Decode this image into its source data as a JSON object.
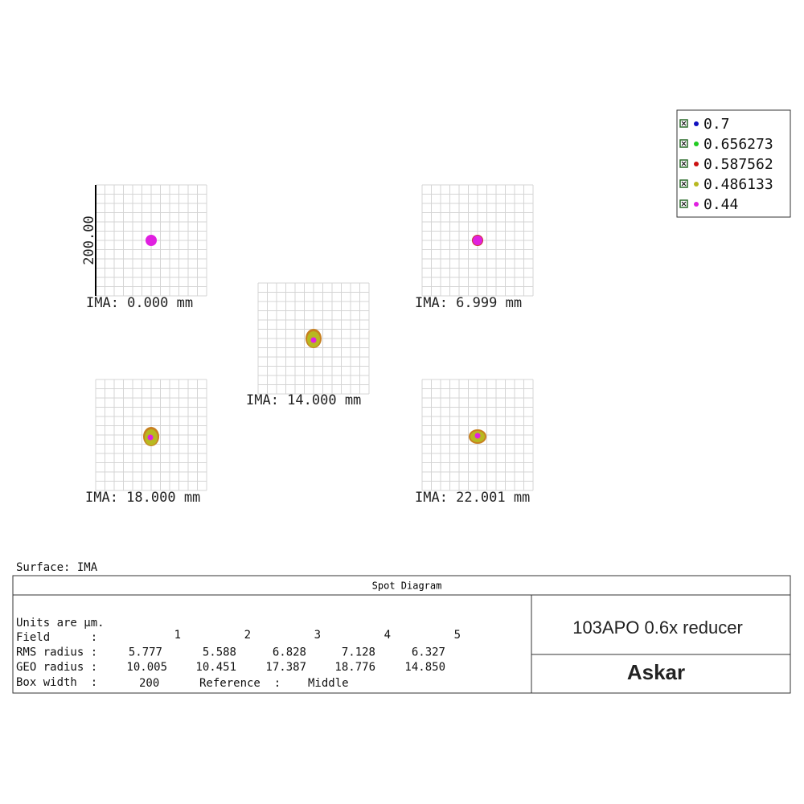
{
  "legend": [
    {
      "label": "0.7",
      "color": "#1010c0"
    },
    {
      "label": "0.656273",
      "color": "#22cc22"
    },
    {
      "label": "0.587562",
      "color": "#cc1111"
    },
    {
      "label": "0.486133",
      "color": "#b8b820"
    },
    {
      "label": "0.44",
      "color": "#e020e0"
    }
  ],
  "scale_label": "200.00",
  "fields": [
    {
      "label": "IMA: 0.000 mm"
    },
    {
      "label": "IMA: 6.999 mm"
    },
    {
      "label": "IMA: 14.000 mm"
    },
    {
      "label": "IMA: 18.000 mm"
    },
    {
      "label": "IMA: 22.001 mm"
    }
  ],
  "surface": "Surface: IMA",
  "table": {
    "title": "Spot Diagram",
    "units": "Units are µm.",
    "rows": [
      {
        "label": "Field      :",
        "values": [
          "1",
          "2",
          "3",
          "4",
          "5"
        ]
      },
      {
        "label": "RMS radius :",
        "values": [
          "5.777",
          "5.588",
          "6.828",
          "7.128",
          "6.327"
        ]
      },
      {
        "label": "GEO radius :",
        "values": [
          "10.005",
          "10.451",
          "17.387",
          "18.776",
          "14.850"
        ]
      }
    ],
    "box_label": "Box width  :",
    "box_value": "200",
    "reference_label": "Reference  :",
    "reference_value": "Middle"
  },
  "design": "103APO 0.6x reducer",
  "brand": "Askar"
}
